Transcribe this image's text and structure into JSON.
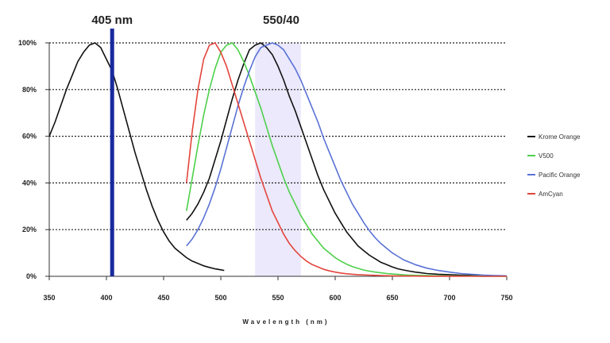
{
  "chart_data": {
    "type": "line",
    "xlabel": "Wavelength (nm)",
    "ylabel": "",
    "xlim": [
      350,
      750
    ],
    "ylim": [
      0,
      100
    ],
    "xticks": [
      "350",
      "400",
      "450",
      "500",
      "550",
      "600",
      "650",
      "700",
      "750"
    ],
    "yticks": [
      "0%",
      "20%",
      "40%",
      "60%",
      "80%",
      "100%"
    ],
    "grid": "horizontal dotted",
    "legend_position": "right",
    "annotations": {
      "laser_label": "405 nm",
      "laser_x": 405,
      "laser_color": "#1a2a9c",
      "filter_label": "550/40",
      "filter_range": [
        530,
        570
      ],
      "filter_color": "#ebe9fb"
    },
    "series": [
      {
        "name": "Krome Orange",
        "color": "#111111",
        "segments": [
          {
            "x": [
              350,
              355,
              360,
              365,
              370,
              375,
              380,
              385,
              390,
              395,
              400,
              405
            ],
            "y": [
              60,
              66,
              73,
              80,
              86,
              92,
              96,
              99,
              100,
              98,
              93,
              88
            ]
          },
          {
            "x": [
              405,
              410,
              415,
              420,
              425,
              430,
              435,
              440,
              445,
              450,
              455,
              460,
              465,
              470,
              475,
              480,
              485,
              490,
              495,
              500,
              503
            ],
            "y": [
              88,
              80,
              71,
              62,
              53,
              45,
              37,
              30,
              24,
              19,
              15,
              12,
              10,
              8,
              6.5,
              5.5,
              4.5,
              3.8,
              3.2,
              2.8,
              2.5
            ]
          },
          {
            "x": [
              470,
              475,
              480,
              485,
              490,
              495,
              500,
              505,
              510,
              515,
              520,
              525,
              530,
              535,
              540,
              545,
              550,
              555,
              560,
              565,
              570,
              575,
              580,
              585,
              590,
              595,
              600,
              605,
              610,
              615,
              620,
              625,
              630,
              635,
              640,
              645,
              650,
              655,
              660,
              665,
              670,
              675,
              680,
              690,
              700,
              710,
              720,
              730,
              740,
              750
            ],
            "y": [
              24,
              27,
              31,
              36,
              42,
              50,
              58,
              67,
              76,
              84,
              91,
              97,
              99,
              100,
              98,
              95,
              90,
              84,
              77,
              71,
              64,
              57,
              50,
              43,
              37,
              32,
              27,
              23,
              19,
              16,
              13,
              11,
              9,
              7.5,
              6,
              5,
              4,
              3.2,
              2.7,
              2.2,
              1.8,
              1.5,
              1.2,
              0.9,
              0.7,
              0.5,
              0.4,
              0.3,
              0.2,
              0.1
            ]
          }
        ]
      },
      {
        "name": "V500",
        "color": "#4dd04a",
        "segments": [
          {
            "x": [
              470,
              475,
              480,
              485,
              490,
              495,
              500,
              505,
              510,
              515,
              520,
              525,
              530,
              535,
              540,
              545,
              550,
              555,
              560,
              565,
              570,
              575,
              580,
              585,
              590,
              595,
              600,
              605,
              610,
              615,
              620,
              625,
              630,
              635,
              640,
              645,
              650,
              655,
              660,
              665,
              670,
              680,
              690,
              700,
              710,
              720,
              730,
              740,
              750
            ],
            "y": [
              28,
              42,
              56,
              69,
              80,
              89,
              96,
              99,
              100,
              97,
              92,
              86,
              79,
              72,
              64,
              56,
              49,
              42,
              36,
              31,
              26,
              22,
              18,
              15,
              12,
              10,
              8,
              6.5,
              5.2,
              4.2,
              3.4,
              2.7,
              2.2,
              1.8,
              1.5,
              1.2,
              1,
              0.8,
              0.6,
              0.5,
              0.4,
              0.3,
              0.2,
              0.15,
              0.1,
              0.1,
              0.05,
              0.05,
              0
            ]
          }
        ]
      },
      {
        "name": "Pacific Orange",
        "color": "#5a72d6",
        "segments": [
          {
            "x": [
              470,
              475,
              480,
              485,
              490,
              495,
              500,
              505,
              510,
              515,
              520,
              525,
              530,
              535,
              540,
              545,
              550,
              555,
              560,
              565,
              570,
              575,
              580,
              585,
              590,
              595,
              600,
              605,
              610,
              615,
              620,
              625,
              630,
              635,
              640,
              645,
              650,
              655,
              660,
              670,
              680,
              690,
              700,
              710,
              720,
              730,
              740,
              750
            ],
            "y": [
              13,
              16,
              20,
              25,
              31,
              38,
              46,
              55,
              64,
              73,
              81,
              88,
              94,
              98,
              99,
              100,
              99,
              97,
              93,
              89,
              84,
              78,
              72,
              66,
              59,
              53,
              47,
              41,
              36,
              31,
              27,
              23,
              19.5,
              16.5,
              14,
              12,
              10,
              8.5,
              7,
              5,
              3.5,
              2.5,
              1.8,
              1.2,
              0.8,
              0.5,
              0.3,
              0.2
            ]
          }
        ]
      },
      {
        "name": "AmCyan",
        "color": "#e3453c",
        "segments": [
          {
            "x": [
              470,
              475,
              480,
              485,
              490,
              495,
              500,
              505,
              510,
              515,
              520,
              525,
              530,
              535,
              540,
              545,
              550,
              555,
              560,
              565,
              570,
              575,
              580,
              585,
              590,
              595,
              600,
              605,
              610,
              615,
              620,
              630,
              640,
              650,
              660,
              670,
              680,
              700,
              720,
              750
            ],
            "y": [
              40,
              62,
              80,
              93,
              99,
              100,
              96,
              90,
              82,
              74,
              66,
              58,
              50,
              42,
              35,
              28,
              23,
              18,
              14,
              11,
              8.5,
              6.5,
              5,
              4,
              3,
              2.3,
              1.8,
              1.4,
              1.1,
              0.9,
              0.7,
              0.5,
              0.3,
              0.2,
              0.15,
              0.1,
              0.05,
              0.05,
              0,
              0
            ]
          }
        ]
      }
    ]
  }
}
